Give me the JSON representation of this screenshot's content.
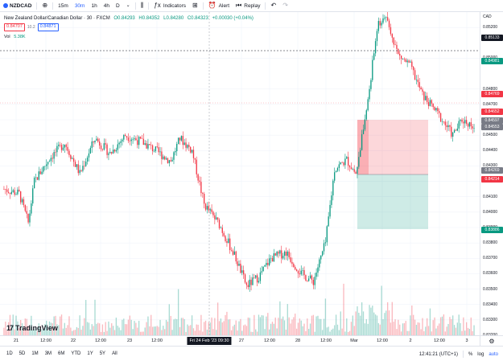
{
  "toolbar": {
    "symbol": "NZDCAD",
    "timeframes": [
      "15m",
      "30m",
      "1h",
      "4h",
      "D"
    ],
    "active_timeframe": "30m",
    "indicators_label": "Indicators",
    "alert_label": "Alert",
    "replay_label": "Replay"
  },
  "legend": {
    "title": "New Zealand Dollar/Canadian Dollar · 30 · FXCM",
    "open": "O0.84293",
    "high": "H0.84352",
    "low": "L0.84280",
    "close": "C0.84323",
    "change": "+0.00030 (+0.04%)",
    "sell_price": "0.84707",
    "spread": "10.2",
    "buy_price": "0.84871",
    "vol_label": "Vol",
    "vol_value": "5.38K"
  },
  "price_axis": {
    "currency": "CAD",
    "labels": [
      "0.85200",
      "0.85000",
      "0.84800",
      "0.84700",
      "0.84600",
      "0.84500",
      "0.84400",
      "0.84300",
      "0.84200",
      "0.84100",
      "0.84000",
      "0.83900",
      "0.83800",
      "0.83700",
      "0.83600",
      "0.83500",
      "0.83400",
      "0.83300",
      "0.83200"
    ],
    "tags": [
      {
        "text": "0.85133",
        "color": "#131722"
      },
      {
        "text": "0.84981",
        "color": "#089981"
      },
      {
        "text": "0.84769",
        "color": "#f23645"
      },
      {
        "text": "0.84652",
        "color": "#f23645"
      },
      {
        "text": "0.84597",
        "color": "#787b86"
      },
      {
        "text": "0.84553",
        "color": "#787b86"
      },
      {
        "text": "0.84269",
        "color": "#787b86"
      },
      {
        "text": "0.84214",
        "color": "#f23645"
      },
      {
        "text": "0.83886",
        "color": "#089981"
      }
    ]
  },
  "time_axis": {
    "labels": [
      "21",
      "12:00",
      "22",
      "12:00",
      "23",
      "12:00",
      "27",
      "12:00",
      "28",
      "12:00",
      "Mar",
      "12:00",
      "2",
      "12:00",
      "3"
    ],
    "crosshair": "Fri 24 Feb '23   09:30"
  },
  "bottom_bar": {
    "ranges": [
      "1D",
      "5D",
      "1M",
      "3M",
      "6M",
      "YTD",
      "1Y",
      "5Y",
      "All"
    ],
    "clock": "12:41:21 (UTC+1)",
    "percent": "%",
    "log": "log",
    "auto": "auto"
  },
  "logo_text": "TradingView",
  "chart_data": {
    "type": "candlestick",
    "y_range": [
      0.832,
      0.853
    ],
    "colors": {
      "up": "#089981",
      "down": "#f23645"
    },
    "trend_waypoints": [
      [
        0,
        0.8415
      ],
      [
        10,
        0.8412
      ],
      [
        16,
        0.8393
      ],
      [
        20,
        0.842
      ],
      [
        30,
        0.8435
      ],
      [
        40,
        0.8445
      ],
      [
        50,
        0.8425
      ],
      [
        60,
        0.8448
      ],
      [
        70,
        0.8438
      ],
      [
        80,
        0.845
      ],
      [
        92,
        0.8445
      ],
      [
        100,
        0.844
      ],
      [
        110,
        0.8433
      ],
      [
        116,
        0.8448
      ],
      [
        124,
        0.844
      ],
      [
        132,
        0.8405
      ],
      [
        142,
        0.8392
      ],
      [
        152,
        0.8372
      ],
      [
        160,
        0.8352
      ],
      [
        168,
        0.8358
      ],
      [
        176,
        0.837
      ],
      [
        186,
        0.8374
      ],
      [
        196,
        0.836
      ],
      [
        204,
        0.8355
      ],
      [
        212,
        0.838
      ],
      [
        218,
        0.8428
      ],
      [
        226,
        0.8434
      ],
      [
        232,
        0.8425
      ],
      [
        240,
        0.8472
      ],
      [
        246,
        0.852
      ],
      [
        252,
        0.8528
      ],
      [
        260,
        0.8502
      ],
      [
        268,
        0.8495
      ],
      [
        276,
        0.8476
      ],
      [
        286,
        0.8464
      ],
      [
        296,
        0.845
      ],
      [
        302,
        0.846
      ],
      [
        310,
        0.8456
      ]
    ]
  }
}
